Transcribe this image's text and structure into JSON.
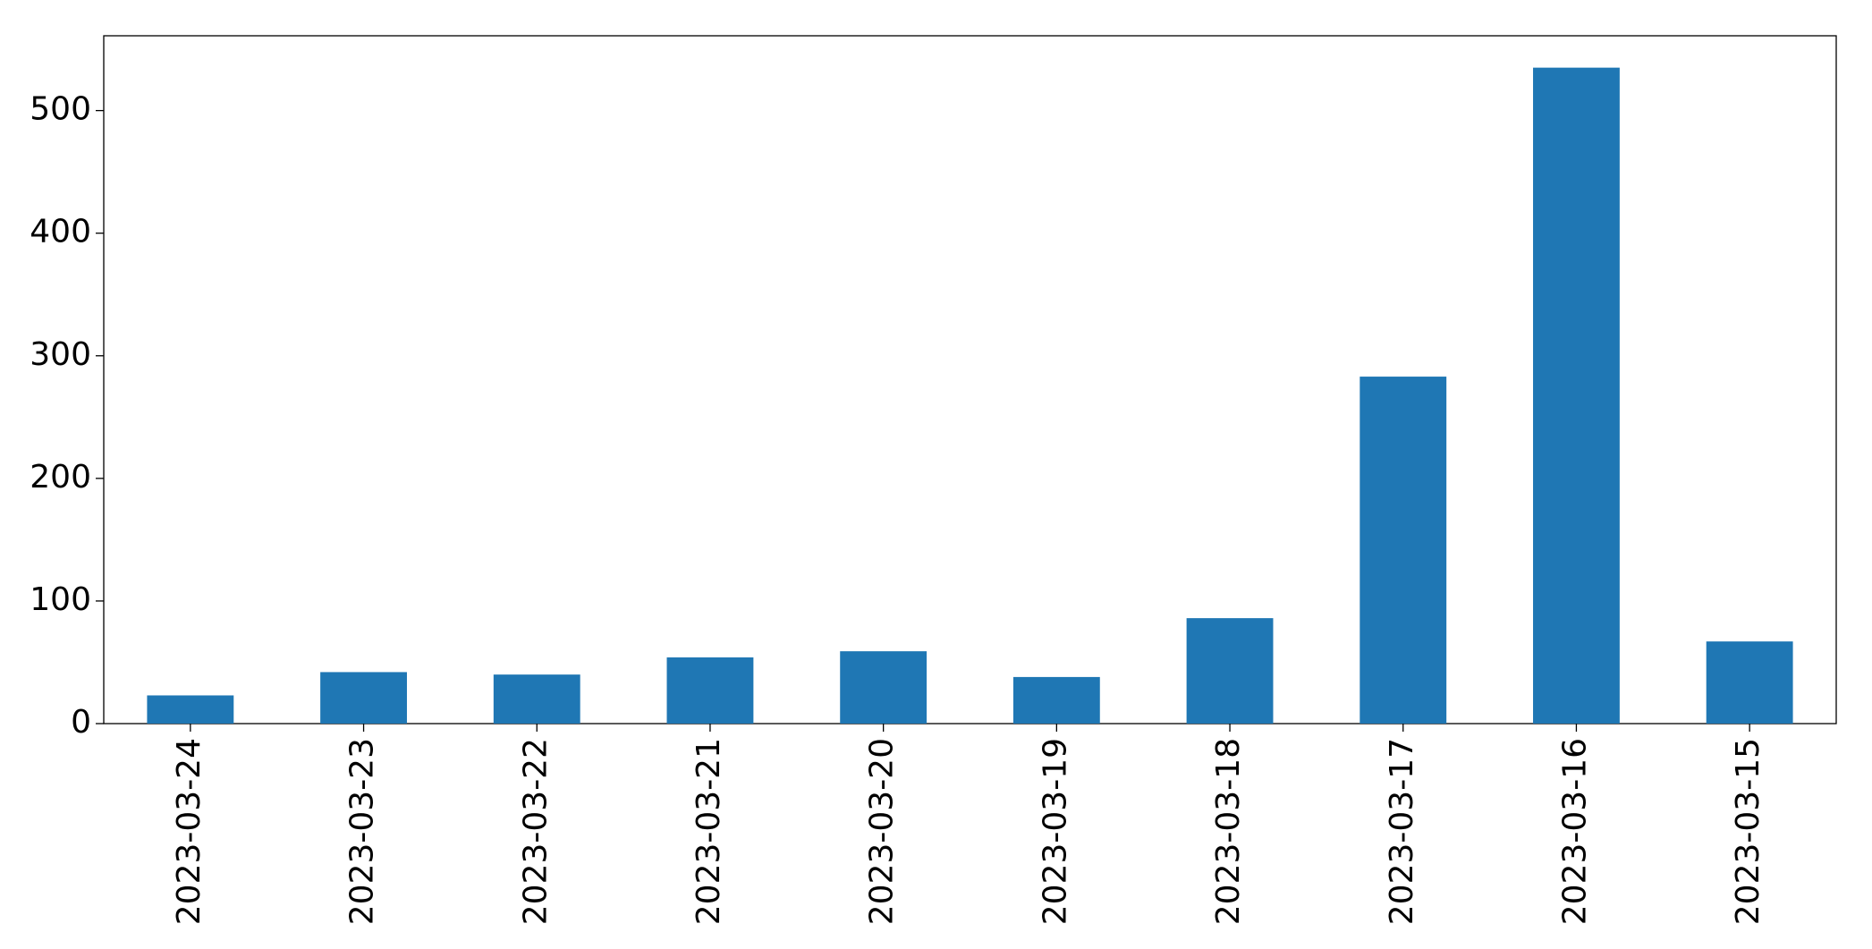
{
  "chart_data": {
    "type": "bar",
    "categories": [
      "2023-03-24",
      "2023-03-23",
      "2023-03-22",
      "2023-03-21",
      "2023-03-20",
      "2023-03-19",
      "2023-03-18",
      "2023-03-17",
      "2023-03-16",
      "2023-03-15"
    ],
    "values": [
      23,
      42,
      40,
      54,
      59,
      38,
      86,
      283,
      535,
      67
    ],
    "color": "#1f77b4",
    "ylim": [
      0,
      561
    ],
    "yticks": [
      0,
      100,
      200,
      300,
      400,
      500
    ],
    "grid": false
  }
}
